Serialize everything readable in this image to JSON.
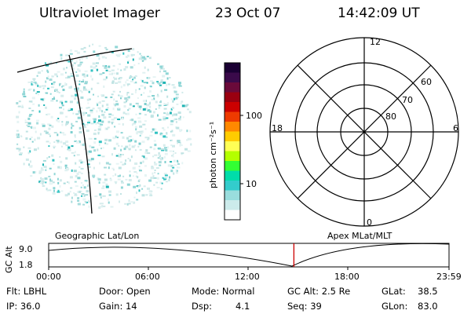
{
  "header": {
    "instrument": "Ultraviolet Imager",
    "date": "23 Oct 07",
    "time": "14:42:09 UT"
  },
  "colorbar": {
    "unit_label": "photon cm⁻²s⁻¹",
    "ticks": [
      "100",
      "10"
    ],
    "scale": "log",
    "colors": [
      "#1a0033",
      "#3a0a4a",
      "#6a0a3a",
      "#9a0010",
      "#cc0000",
      "#ee3a00",
      "#ff8800",
      "#ffcc00",
      "#ffff55",
      "#b4ff00",
      "#33ff33",
      "#00ddaa",
      "#33cccc",
      "#99dddd",
      "#ccebeb",
      "#ffffff"
    ]
  },
  "polar_plot": {
    "mlt_labels": [
      "12",
      "18",
      "6",
      "0"
    ],
    "lat_labels": [
      "60",
      "70",
      "80"
    ]
  },
  "timeline": {
    "left_title": "Geographic Lat/Lon",
    "right_title": "Apex MLat/MLT",
    "ylabel": "GC Alt",
    "y_ticks": [
      "9.0",
      "1.8"
    ],
    "x_ticks": [
      "00:00",
      "06:00",
      "12:00",
      "18:00",
      "23:59"
    ],
    "current_time_hours": 14.7,
    "marker_color": "#cc0000"
  },
  "info": {
    "flt": "Flt: LBHL",
    "ip": "IP: 36.0",
    "door": "Door: Open",
    "gain": "Gain: 14",
    "mode": "Mode:  Normal",
    "dsp": "Dsp:",
    "dsp_val": "4.1",
    "gc_alt": "GC Alt: 2.5 Re",
    "seq": "Seq: 39",
    "glat_label": "GLat:",
    "glat_val": "38.5",
    "glon_label": "GLon:",
    "glon_val": "83.0"
  }
}
